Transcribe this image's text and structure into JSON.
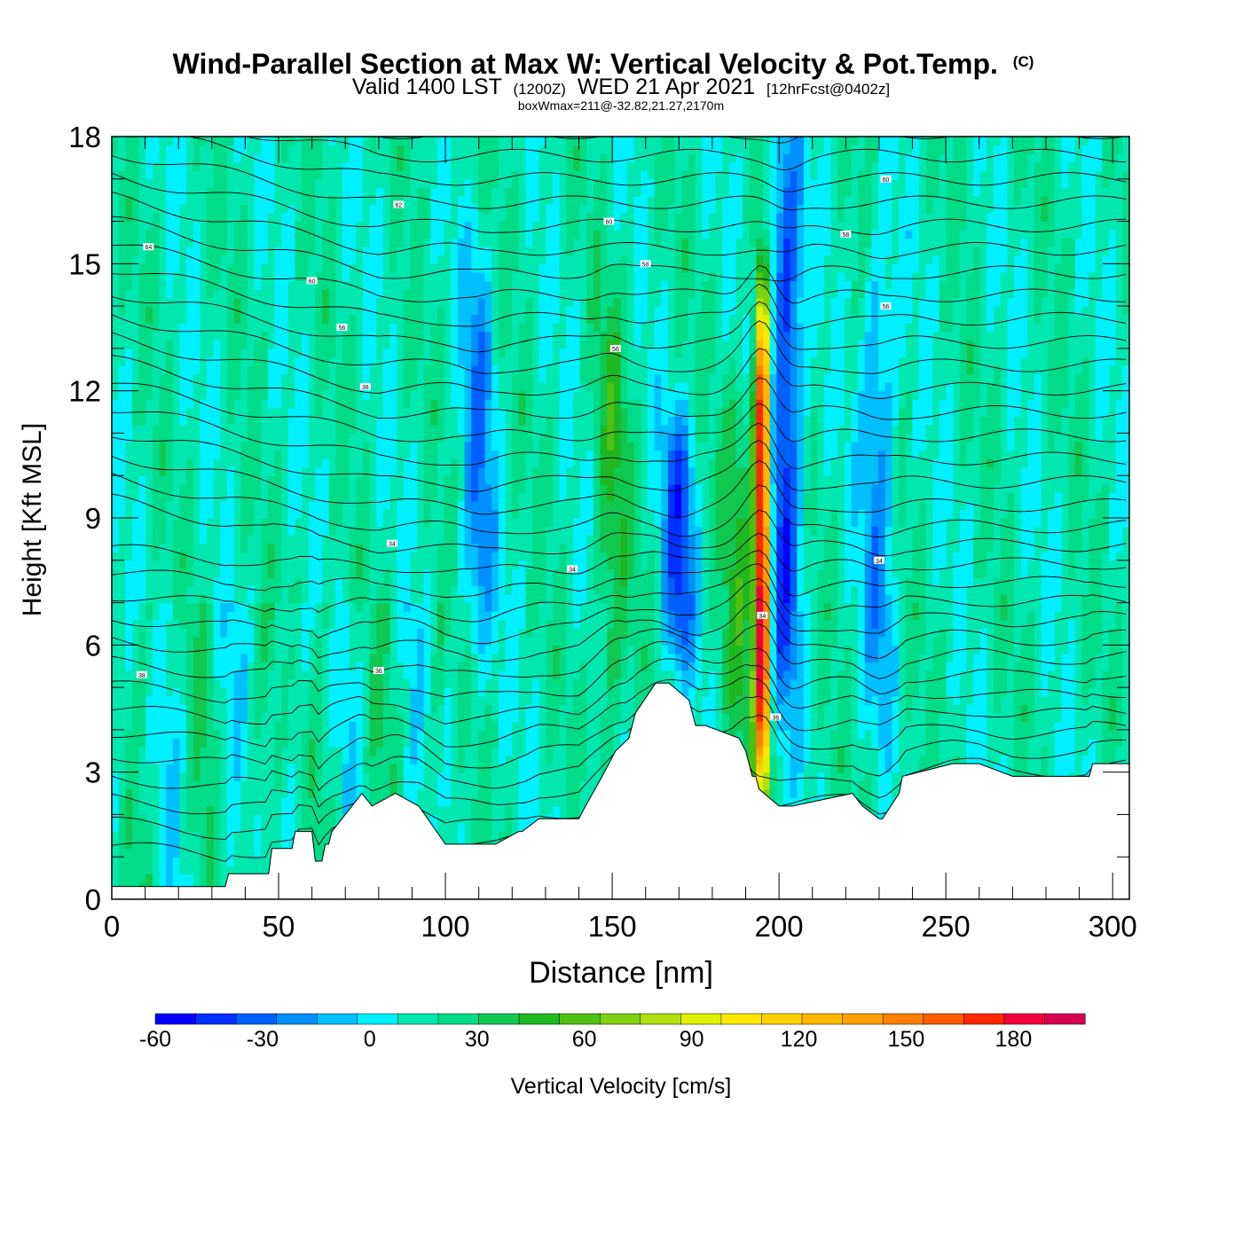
{
  "chart_data": {
    "type": "heatmap",
    "title": "Wind-Parallel Section at Max W: Vertical Velocity & Pot.Temp.",
    "copyright": "(C)",
    "subtitle": {
      "prefix": "Valid 1400 LST",
      "utc": "(1200Z)",
      "date": "WED 21 Apr 2021",
      "forecast": "[12hrFcst@0402z]"
    },
    "info_line": "boxWmax=211@-32.82,21.27,2170m",
    "xlabel": "Distance [nm]",
    "ylabel": "Height [Kft MSL]",
    "xlim": [
      0,
      305
    ],
    "ylim": [
      0,
      18
    ],
    "x_ticks": [
      0,
      50,
      100,
      150,
      200,
      250,
      300
    ],
    "y_ticks": [
      0,
      3,
      6,
      9,
      12,
      15,
      18
    ],
    "colorbar": {
      "label": "Vertical Velocity [cm/s]",
      "range": [
        -60,
        200
      ],
      "tick_values": [
        -60,
        -30,
        0,
        30,
        60,
        90,
        120,
        150,
        180
      ],
      "colors": [
        "#0000ff",
        "#0030ff",
        "#0060ff",
        "#0090ff",
        "#00c0ff",
        "#00f0ff",
        "#00e8b0",
        "#00dc88",
        "#10c850",
        "#20b820",
        "#50c010",
        "#80d010",
        "#b0e010",
        "#e0f000",
        "#ffe800",
        "#ffd000",
        "#ffb800",
        "#ffa000",
        "#ff8000",
        "#ff5c00",
        "#ff2800",
        "#f0003c",
        "#d80050"
      ]
    },
    "max_w": 211,
    "terrain_profile": {
      "x": [
        0,
        34,
        35,
        47,
        48,
        54,
        55,
        60,
        61,
        63,
        64,
        65,
        66,
        71,
        75,
        78,
        85,
        92,
        100,
        115,
        122,
        123,
        128,
        140,
        142,
        147,
        151,
        155,
        157,
        163,
        167,
        173,
        175,
        178,
        188,
        190,
        192,
        193,
        194,
        200,
        204,
        222,
        225,
        230,
        231,
        236,
        237,
        252,
        260,
        270,
        293,
        294,
        305
      ],
      "height_kft": [
        0.3,
        0.3,
        0.6,
        0.6,
        1.2,
        1.2,
        1.6,
        1.6,
        0.9,
        0.9,
        1.3,
        1.3,
        1.6,
        2.1,
        2.5,
        2.2,
        2.5,
        2.2,
        1.3,
        1.3,
        1.6,
        1.6,
        1.9,
        1.9,
        2.2,
        2.9,
        3.5,
        3.8,
        4.4,
        5.1,
        5.1,
        4.7,
        4.1,
        4.1,
        3.8,
        3.5,
        2.9,
        2.9,
        2.6,
        2.2,
        2.2,
        2.5,
        2.2,
        1.9,
        1.9,
        2.5,
        2.9,
        3.2,
        3.2,
        2.9,
        2.9,
        3.2,
        3.2
      ]
    },
    "vertical_velocity_features": [
      {
        "x": 195,
        "z_range": [
          3,
          13.8
        ],
        "peak_cm_s": 211
      },
      {
        "x": 202,
        "z_range": [
          5,
          18
        ],
        "peak_cm_s": -45
      },
      {
        "x": 170,
        "z_range": [
          6,
          11
        ],
        "peak_cm_s": -35
      },
      {
        "x": 110,
        "z_range": [
          6,
          15
        ],
        "peak_cm_s": -20
      },
      {
        "x": 230,
        "z_range": [
          5,
          15
        ],
        "peak_cm_s": -20
      },
      {
        "x": 150,
        "z_range": [
          4,
          14
        ],
        "peak_cm_s": 40
      },
      {
        "x": 188,
        "z_range": [
          4,
          12
        ],
        "peak_cm_s": 40
      }
    ],
    "theta_contour_labels": [
      {
        "x": 11,
        "z": 15.4,
        "text": "64"
      },
      {
        "x": 86,
        "z": 16.4,
        "text": "62"
      },
      {
        "x": 149,
        "z": 16.0,
        "text": "60"
      },
      {
        "x": 160,
        "z": 15.0,
        "text": "58"
      },
      {
        "x": 60,
        "z": 14.6,
        "text": "60"
      },
      {
        "x": 69,
        "z": 13.5,
        "text": "56"
      },
      {
        "x": 151,
        "z": 13.0,
        "text": "56"
      },
      {
        "x": 76,
        "z": 12.1,
        "text": "38"
      },
      {
        "x": 84,
        "z": 8.4,
        "text": "34"
      },
      {
        "x": 138,
        "z": 7.8,
        "text": "34"
      },
      {
        "x": 9,
        "z": 5.3,
        "text": "38"
      },
      {
        "x": 80,
        "z": 5.4,
        "text": "36"
      },
      {
        "x": 220,
        "z": 15.7,
        "text": "58"
      },
      {
        "x": 232,
        "z": 17.0,
        "text": "60"
      },
      {
        "x": 232,
        "z": 14.0,
        "text": "56"
      },
      {
        "x": 230,
        "z": 8.0,
        "text": "34"
      },
      {
        "x": 195,
        "z": 6.7,
        "text": "34"
      },
      {
        "x": 199,
        "z": 4.3,
        "text": "36"
      }
    ]
  }
}
